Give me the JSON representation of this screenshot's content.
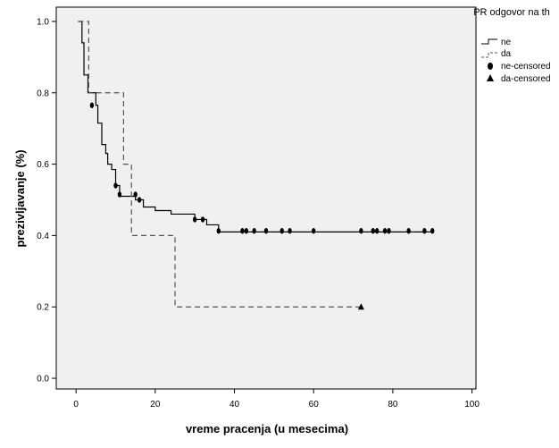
{
  "chart_data": {
    "type": "line",
    "subtype": "kaplan-meier survival curve",
    "xlabel": "vreme pracenja (u mesecima)",
    "ylabel": "prezivljavanje (%)",
    "xlim": [
      -5,
      101
    ],
    "ylim": [
      -0.03,
      1.04
    ],
    "x_ticks": [
      0,
      20,
      40,
      60,
      80,
      100
    ],
    "y_ticks": [
      0.0,
      0.2,
      0.4,
      0.6,
      0.8,
      1.0
    ],
    "x_tick_labels": [
      "0",
      "20",
      "40",
      "60",
      "80",
      "100"
    ],
    "y_tick_labels": [
      "0.0",
      "0.2",
      "0.4",
      "0.6",
      "0.8",
      "1.0"
    ],
    "plot_background": "#f0f0f0",
    "grid": false,
    "legend": {
      "title": "PR odgovor na th",
      "placement": "top-right, outside plot",
      "entries": [
        "ne",
        "da",
        "ne-censored",
        "da-censored"
      ]
    },
    "series": [
      {
        "name": "ne",
        "line_style": "solid",
        "color": "#000000",
        "steps": [
          [
            0.5,
            1.0
          ],
          [
            1.5,
            0.94
          ],
          [
            2,
            0.85
          ],
          [
            3,
            0.8
          ],
          [
            5,
            0.765
          ],
          [
            5.5,
            0.715
          ],
          [
            6.5,
            0.655
          ],
          [
            7.5,
            0.63
          ],
          [
            8,
            0.6
          ],
          [
            9,
            0.585
          ],
          [
            10,
            0.54
          ],
          [
            11,
            0.51
          ],
          [
            15,
            0.5
          ],
          [
            17,
            0.48
          ],
          [
            20,
            0.47
          ],
          [
            24,
            0.46
          ],
          [
            30,
            0.445
          ],
          [
            33,
            0.43
          ],
          [
            36,
            0.41
          ],
          [
            90,
            0.41
          ]
        ],
        "censored": [
          [
            4,
            0.765
          ],
          [
            10,
            0.54
          ],
          [
            11,
            0.515
          ],
          [
            15,
            0.515
          ],
          [
            16,
            0.5
          ],
          [
            30,
            0.445
          ],
          [
            32,
            0.445
          ],
          [
            36,
            0.413
          ],
          [
            42,
            0.413
          ],
          [
            43,
            0.413
          ],
          [
            45,
            0.413
          ],
          [
            48,
            0.413
          ],
          [
            52,
            0.413
          ],
          [
            54,
            0.413
          ],
          [
            60,
            0.413
          ],
          [
            72,
            0.413
          ],
          [
            75,
            0.413
          ],
          [
            76,
            0.413
          ],
          [
            78,
            0.413
          ],
          [
            79,
            0.413
          ],
          [
            84,
            0.413
          ],
          [
            88,
            0.413
          ],
          [
            90,
            0.413
          ]
        ]
      },
      {
        "name": "da",
        "line_style": "dashed",
        "color": "#555555",
        "steps": [
          [
            0.5,
            1.0
          ],
          [
            3,
            1.0
          ],
          [
            3.2,
            0.8
          ],
          [
            12,
            0.6
          ],
          [
            14,
            0.4
          ],
          [
            25,
            0.2
          ],
          [
            72,
            0.2
          ]
        ],
        "censored": [
          [
            72,
            0.2
          ]
        ]
      }
    ]
  }
}
